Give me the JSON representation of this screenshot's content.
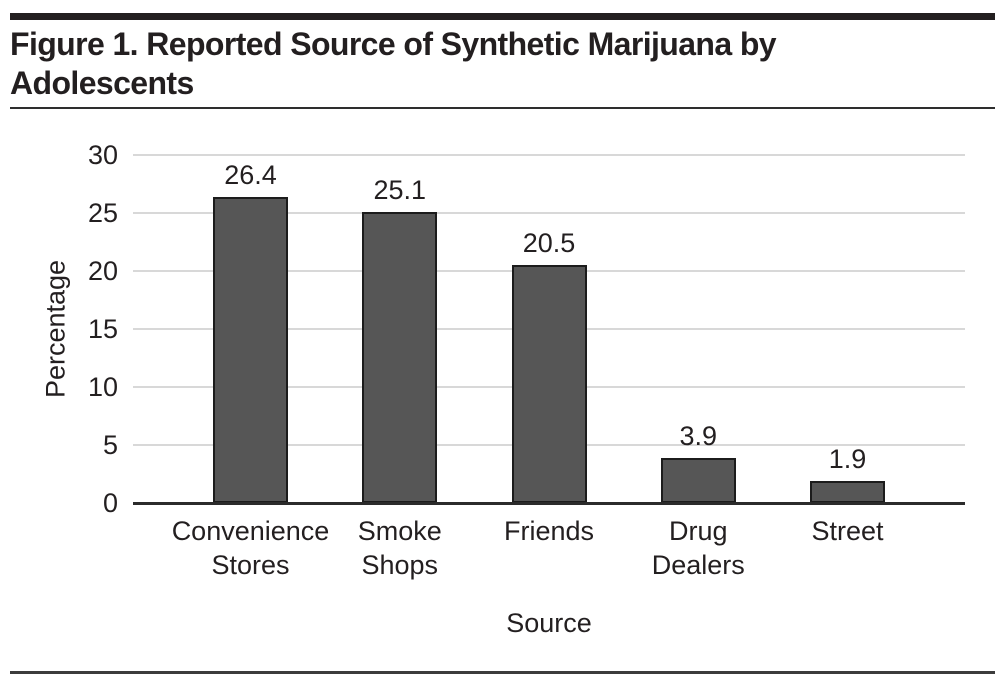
{
  "figure": {
    "title": "Figure 1. Reported Source of Synthetic Marijuana by Adolescents",
    "title_lines": [
      "Figure 1. Reported Source of Synthetic Marijuana by",
      "Adolescents"
    ]
  },
  "chart_data": {
    "type": "bar",
    "title": "Figure 1. Reported Source of Synthetic Marijuana by Adolescents",
    "categories": [
      "Convenience Stores",
      "Smoke Shops",
      "Friends",
      "Drug Dealers",
      "Street"
    ],
    "category_lines": [
      [
        "Convenience",
        "Stores"
      ],
      [
        "Smoke",
        "Shops"
      ],
      [
        "Friends"
      ],
      [
        "Drug",
        "Dealers"
      ],
      [
        "Street"
      ]
    ],
    "values": [
      26.4,
      25.1,
      20.5,
      3.9,
      1.9
    ],
    "value_labels": [
      "26.4",
      "25.1",
      "20.5",
      "3.9",
      "1.9"
    ],
    "xlabel": "Source",
    "ylabel": "Percentage",
    "ylim": [
      0,
      30
    ],
    "yticks": [
      0,
      5,
      10,
      15,
      20,
      25,
      30
    ],
    "grid": true,
    "legend": "none",
    "colors": {
      "bar_fill": "#565656",
      "bar_border": "#1c1c1c",
      "gridline": "#d8d8d8",
      "axis": "#2b2b2b",
      "text": "#231f20",
      "rule": "#231f20"
    }
  }
}
